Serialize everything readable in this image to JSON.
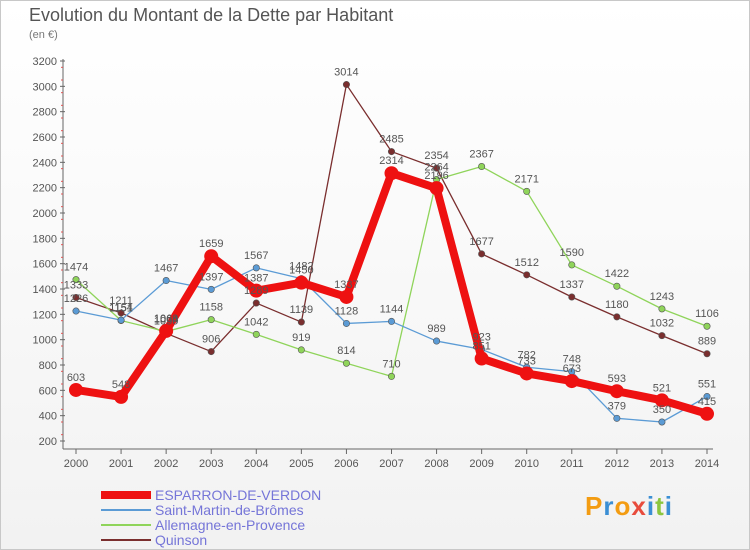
{
  "title": "Evolution du Montant de la Dette par Habitant",
  "unit": "(en €)",
  "logo": {
    "letters": [
      "P",
      "r",
      "o",
      "x",
      "i",
      "t",
      "i"
    ],
    "colors": [
      "#f39c12",
      "#3b8fd4",
      "#f39c12",
      "#e84c3d",
      "#3b8fd4",
      "#8cc63f",
      "#3b8fd4"
    ]
  },
  "chart_data": {
    "type": "line",
    "title": "Evolution du Montant de la Dette par Habitant",
    "ylabel": "(en €)",
    "x": [
      "2000",
      "2001",
      "2002",
      "2003",
      "2004",
      "2005",
      "2006",
      "2007",
      "2008",
      "2009",
      "2010",
      "2011",
      "2012",
      "2013",
      "2014"
    ],
    "ylim": [
      200,
      3200
    ],
    "yticks": [
      200,
      400,
      600,
      800,
      1000,
      1200,
      1400,
      1600,
      1800,
      2000,
      2200,
      2400,
      2600,
      2800,
      3000,
      3200
    ],
    "grid": false,
    "legend_position": "bottom-left",
    "series": [
      {
        "name": "ESPARRON-DE-VERDON",
        "color": "#ee1111",
        "values": [
          603,
          548,
          1069,
          1659,
          1387,
          1450,
          1337,
          2314,
          2196,
          851,
          733,
          673,
          593,
          521,
          415
        ]
      },
      {
        "name": "Saint-Martin-de-Brômes",
        "color": "#5b9bd5",
        "values": [
          1226,
          1154,
          1467,
          1397,
          1567,
          1482,
          1128,
          1144,
          989,
          923,
          782,
          748,
          379,
          350,
          551
        ]
      },
      {
        "name": "Allemagne-en-Provence",
        "color": "#8fd45a",
        "values": [
          1474,
          1151,
          1064,
          1158,
          1042,
          919,
          814,
          710,
          2264,
          2367,
          2171,
          1590,
          1422,
          1243,
          1106
        ]
      },
      {
        "name": "Quinson",
        "color": "#7a2e2e",
        "values": [
          1333,
          1211,
          1050,
          906,
          1289,
          1139,
          3014,
          2485,
          2354,
          1677,
          1512,
          1337,
          1180,
          1032,
          889
        ]
      }
    ]
  }
}
